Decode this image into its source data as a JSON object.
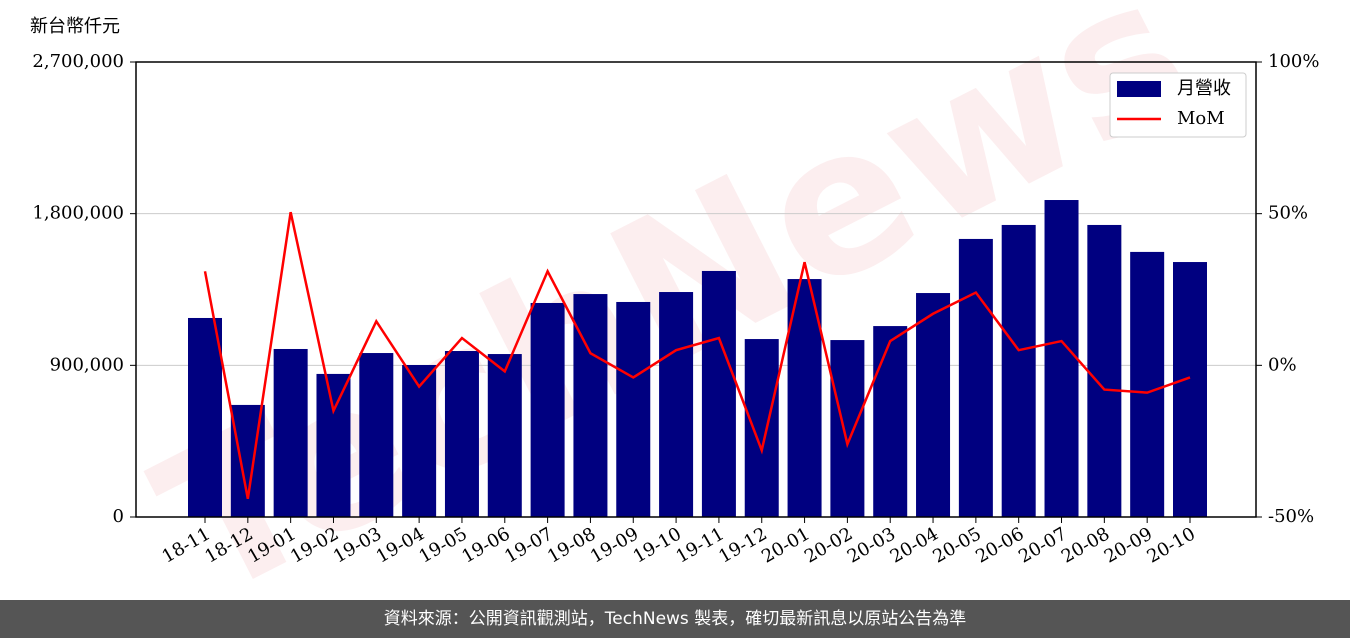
{
  "chart_data": {
    "type": "bar-line",
    "ylabel": "新台幣仟元",
    "watermark": "TechNews",
    "footer": "資料來源：公開資訊觀測站，TechNews 製表，確切最新訊息以原站公告為準",
    "categories": [
      "18-11",
      "18-12",
      "19-01",
      "19-02",
      "19-03",
      "19-04",
      "19-05",
      "19-06",
      "19-07",
      "19-08",
      "19-09",
      "19-10",
      "19-11",
      "19-12",
      "20-01",
      "20-02",
      "20-03",
      "20-04",
      "20-05",
      "20-06",
      "20-07",
      "20-08",
      "20-09",
      "20-10"
    ],
    "series": [
      {
        "name": "月營收",
        "type": "bar",
        "color": "#000080",
        "values": [
          1181000,
          665000,
          997000,
          849000,
          973000,
          902000,
          985000,
          967000,
          1270000,
          1323000,
          1276000,
          1335000,
          1460000,
          1056000,
          1412000,
          1050000,
          1133000,
          1329000,
          1650000,
          1733000,
          1881000,
          1733000,
          1573000,
          1513000
        ]
      },
      {
        "name": "MoM",
        "type": "line",
        "axis": "y2",
        "color": "#ff0000",
        "values": [
          31,
          -44,
          50.5,
          -15,
          14.5,
          -7,
          9,
          -2,
          31,
          4,
          -4,
          5,
          9,
          -28,
          34,
          -26,
          8,
          17,
          24,
          5,
          8,
          -8,
          -9,
          -4
        ]
      }
    ],
    "ylim": [
      0,
      2700000
    ],
    "yticks": [
      {
        "value": 0,
        "label": "0"
      },
      {
        "value": 900000,
        "label": "900,000"
      },
      {
        "value": 1800000,
        "label": "1,800,000"
      },
      {
        "value": 2700000,
        "label": "2,700,000"
      }
    ],
    "y2lim": [
      -50,
      100
    ],
    "y2ticks": [
      {
        "value": -50,
        "label": "-50%"
      },
      {
        "value": 0,
        "label": "0%"
      },
      {
        "value": 50,
        "label": "50%"
      },
      {
        "value": 100,
        "label": "100%"
      }
    ],
    "grid": true,
    "legend": "upper right"
  }
}
